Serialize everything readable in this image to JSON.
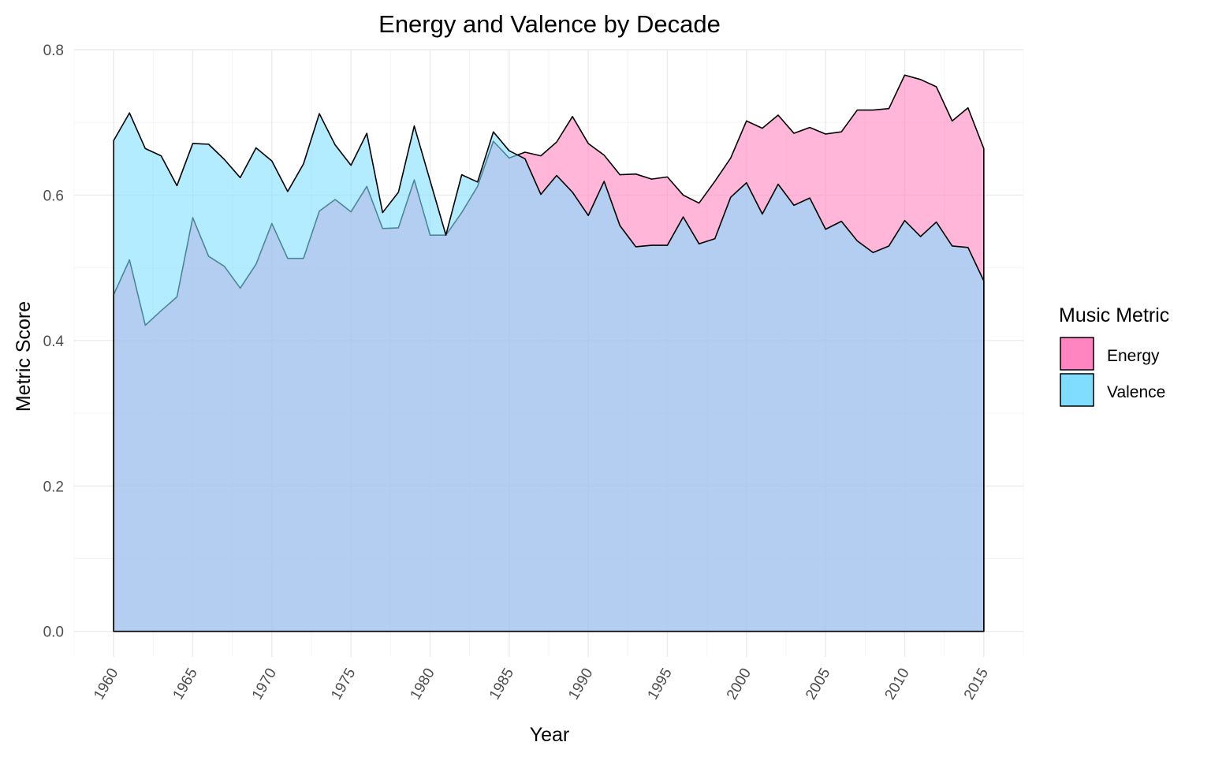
{
  "chart_data": {
    "type": "area",
    "title": "Energy and Valence by Decade",
    "xlabel": "Year",
    "ylabel": "Metric Score",
    "xlim": [
      1957.5,
      2017.5
    ],
    "ylim": [
      -0.035,
      0.8
    ],
    "x_ticks": [
      1960,
      1965,
      1970,
      1975,
      1980,
      1985,
      1990,
      1995,
      2000,
      2005,
      2010,
      2015
    ],
    "x_tick_labels": [
      "1960",
      "1965",
      "1970",
      "1975",
      "1980",
      "1985",
      "1990",
      "1995",
      "2000",
      "2005",
      "2010",
      "2015"
    ],
    "y_ticks": [
      0.0,
      0.2,
      0.4,
      0.6,
      0.8
    ],
    "y_tick_labels": [
      "0.0",
      "0.2",
      "0.4",
      "0.6",
      "0.8"
    ],
    "grid": true,
    "legend": {
      "title": "Music Metric",
      "placement": "right"
    },
    "x": [
      1960,
      1961,
      1962,
      1963,
      1964,
      1965,
      1966,
      1967,
      1968,
      1969,
      1970,
      1971,
      1972,
      1973,
      1974,
      1975,
      1976,
      1977,
      1978,
      1979,
      1980,
      1981,
      1982,
      1983,
      1984,
      1985,
      1986,
      1987,
      1988,
      1989,
      1990,
      1991,
      1992,
      1993,
      1994,
      1995,
      1996,
      1997,
      1998,
      1999,
      2000,
      2001,
      2002,
      2003,
      2004,
      2005,
      2006,
      2007,
      2008,
      2009,
      2010,
      2011,
      2012,
      2013,
      2014,
      2015
    ],
    "series": [
      {
        "name": "Energy",
        "color": "#ff85c0",
        "values": [
          0.463,
          0.511,
          0.421,
          0.441,
          0.46,
          0.569,
          0.516,
          0.502,
          0.472,
          0.505,
          0.561,
          0.513,
          0.513,
          0.578,
          0.594,
          0.577,
          0.612,
          0.554,
          0.555,
          0.621,
          0.545,
          0.545,
          0.576,
          0.612,
          0.674,
          0.651,
          0.659,
          0.654,
          0.673,
          0.708,
          0.671,
          0.655,
          0.628,
          0.629,
          0.622,
          0.625,
          0.6,
          0.589,
          0.619,
          0.651,
          0.702,
          0.692,
          0.71,
          0.685,
          0.693,
          0.684,
          0.687,
          0.717,
          0.717,
          0.719,
          0.765,
          0.759,
          0.749,
          0.702,
          0.72,
          0.664
        ]
      },
      {
        "name": "Valence",
        "color": "#80ddff",
        "values": [
          0.675,
          0.713,
          0.664,
          0.654,
          0.613,
          0.671,
          0.67,
          0.649,
          0.624,
          0.665,
          0.647,
          0.605,
          0.643,
          0.712,
          0.669,
          0.641,
          0.685,
          0.576,
          0.604,
          0.695,
          0.62,
          0.545,
          0.628,
          0.618,
          0.687,
          0.661,
          0.65,
          0.601,
          0.627,
          0.604,
          0.572,
          0.619,
          0.558,
          0.529,
          0.531,
          0.531,
          0.57,
          0.533,
          0.54,
          0.597,
          0.617,
          0.574,
          0.615,
          0.586,
          0.596,
          0.553,
          0.564,
          0.537,
          0.521,
          0.53,
          0.565,
          0.543,
          0.563,
          0.53,
          0.528,
          0.482
        ]
      }
    ]
  }
}
